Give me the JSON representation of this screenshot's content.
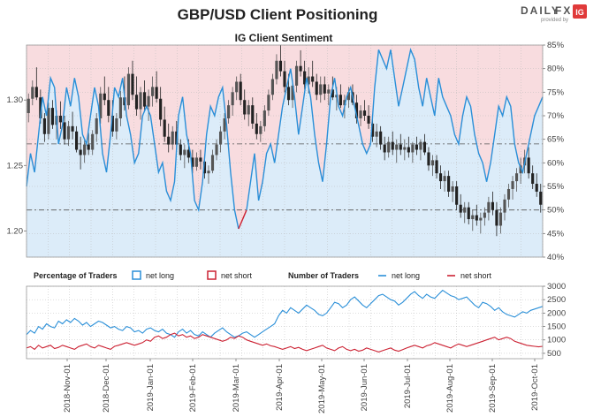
{
  "header": {
    "title": "GBP/USD Client Positioning",
    "brand_daily": "DAILY",
    "brand_fx": "FX",
    "brand_provided": "provided by",
    "brand_ig": "IG"
  },
  "colors": {
    "long": "#2a8fd8",
    "short": "#cc2233",
    "long_fill": "#dcecf9",
    "short_fill": "#f8dcdf",
    "candle_up": "#555555",
    "candle_down": "#222222",
    "brand_fx": "#f07a1e",
    "brand_ig": "#e03a3a"
  },
  "chart_data": [
    {
      "type": "line",
      "title": "IG Client Sentiment",
      "left_ticks": [
        "1.20",
        "1.25",
        "1.30"
      ],
      "left_range": [
        1.18,
        1.342
      ],
      "right_ticks": [
        "40%",
        "45%",
        "50%",
        "55%",
        "60%",
        "65%",
        "70%",
        "75%",
        "80%",
        "85%"
      ],
      "right_range": [
        40,
        85
      ],
      "reference_lines": {
        "percent": 50,
        "price": 1.2665
      },
      "price_candles": [
        [
          1.29,
          1.305,
          1.283,
          1.301
        ],
        [
          1.301,
          1.315,
          1.296,
          1.31
        ],
        [
          1.31,
          1.325,
          1.3,
          1.302
        ],
        [
          1.302,
          1.308,
          1.282,
          1.286
        ],
        [
          1.286,
          1.29,
          1.268,
          1.274
        ],
        [
          1.274,
          1.298,
          1.27,
          1.294
        ],
        [
          1.294,
          1.3,
          1.278,
          1.281
        ],
        [
          1.281,
          1.292,
          1.27,
          1.288
        ],
        [
          1.288,
          1.299,
          1.278,
          1.283
        ],
        [
          1.283,
          1.288,
          1.266,
          1.27
        ],
        [
          1.27,
          1.284,
          1.265,
          1.28
        ],
        [
          1.28,
          1.291,
          1.27,
          1.276
        ],
        [
          1.276,
          1.28,
          1.26,
          1.262
        ],
        [
          1.262,
          1.272,
          1.247,
          1.258
        ],
        [
          1.258,
          1.27,
          1.252,
          1.266
        ],
        [
          1.266,
          1.275,
          1.258,
          1.262
        ],
        [
          1.262,
          1.277,
          1.258,
          1.274
        ],
        [
          1.274,
          1.29,
          1.268,
          1.286
        ],
        [
          1.286,
          1.31,
          1.282,
          1.305
        ],
        [
          1.305,
          1.318,
          1.296,
          1.3
        ],
        [
          1.3,
          1.31,
          1.283,
          1.288
        ],
        [
          1.288,
          1.3,
          1.272,
          1.276
        ],
        [
          1.276,
          1.29,
          1.27,
          1.286
        ],
        [
          1.286,
          1.307,
          1.28,
          1.302
        ],
        [
          1.302,
          1.318,
          1.292,
          1.296
        ],
        [
          1.296,
          1.325,
          1.293,
          1.32
        ],
        [
          1.32,
          1.33,
          1.3,
          1.304
        ],
        [
          1.304,
          1.318,
          1.288,
          1.293
        ],
        [
          1.293,
          1.31,
          1.285,
          1.306
        ],
        [
          1.306,
          1.315,
          1.291,
          1.295
        ],
        [
          1.295,
          1.308,
          1.284,
          1.303
        ],
        [
          1.303,
          1.318,
          1.295,
          1.31
        ],
        [
          1.31,
          1.322,
          1.298,
          1.301
        ],
        [
          1.301,
          1.31,
          1.28,
          1.285
        ],
        [
          1.285,
          1.295,
          1.268,
          1.272
        ],
        [
          1.272,
          1.282,
          1.26,
          1.266
        ],
        [
          1.266,
          1.28,
          1.262,
          1.276
        ],
        [
          1.276,
          1.284,
          1.262,
          1.266
        ],
        [
          1.266,
          1.27,
          1.254,
          1.258
        ],
        [
          1.258,
          1.266,
          1.248,
          1.262
        ],
        [
          1.262,
          1.27,
          1.252,
          1.256
        ],
        [
          1.256,
          1.262,
          1.244,
          1.249
        ],
        [
          1.249,
          1.26,
          1.246,
          1.256
        ],
        [
          1.256,
          1.262,
          1.247,
          1.253
        ],
        [
          1.253,
          1.258,
          1.24,
          1.244
        ],
        [
          1.244,
          1.25,
          1.236,
          1.246
        ],
        [
          1.246,
          1.262,
          1.244,
          1.258
        ],
        [
          1.258,
          1.27,
          1.254,
          1.266
        ],
        [
          1.266,
          1.28,
          1.26,
          1.276
        ],
        [
          1.276,
          1.29,
          1.27,
          1.286
        ],
        [
          1.286,
          1.3,
          1.282,
          1.296
        ],
        [
          1.296,
          1.31,
          1.288,
          1.306
        ],
        [
          1.306,
          1.318,
          1.3,
          1.314
        ],
        [
          1.314,
          1.32,
          1.296,
          1.3
        ],
        [
          1.3,
          1.308,
          1.285,
          1.289
        ],
        [
          1.289,
          1.3,
          1.28,
          1.296
        ],
        [
          1.296,
          1.302,
          1.278,
          1.282
        ],
        [
          1.282,
          1.29,
          1.27,
          1.274
        ],
        [
          1.274,
          1.284,
          1.268,
          1.28
        ],
        [
          1.28,
          1.296,
          1.276,
          1.292
        ],
        [
          1.292,
          1.308,
          1.288,
          1.304
        ],
        [
          1.304,
          1.32,
          1.3,
          1.316
        ],
        [
          1.316,
          1.335,
          1.312,
          1.33
        ],
        [
          1.33,
          1.342,
          1.318,
          1.322
        ],
        [
          1.322,
          1.33,
          1.306,
          1.31
        ],
        [
          1.31,
          1.32,
          1.296,
          1.3
        ],
        [
          1.3,
          1.315,
          1.294,
          1.311
        ],
        [
          1.311,
          1.33,
          1.306,
          1.326
        ],
        [
          1.326,
          1.338,
          1.318,
          1.322
        ],
        [
          1.322,
          1.33,
          1.308,
          1.312
        ],
        [
          1.312,
          1.325,
          1.305,
          1.318
        ],
        [
          1.318,
          1.33,
          1.31,
          1.314
        ],
        [
          1.314,
          1.32,
          1.3,
          1.304
        ],
        [
          1.304,
          1.318,
          1.298,
          1.312
        ],
        [
          1.312,
          1.318,
          1.3,
          1.305
        ],
        [
          1.305,
          1.312,
          1.296,
          1.308
        ],
        [
          1.308,
          1.318,
          1.3,
          1.302
        ],
        [
          1.302,
          1.31,
          1.292,
          1.304
        ],
        [
          1.304,
          1.312,
          1.294,
          1.296
        ],
        [
          1.296,
          1.304,
          1.286,
          1.3
        ],
        [
          1.3,
          1.31,
          1.294,
          1.306
        ],
        [
          1.306,
          1.312,
          1.296,
          1.298
        ],
        [
          1.298,
          1.304,
          1.282,
          1.286
        ],
        [
          1.286,
          1.296,
          1.28,
          1.292
        ],
        [
          1.292,
          1.3,
          1.284,
          1.288
        ],
        [
          1.288,
          1.296,
          1.278,
          1.282
        ],
        [
          1.282,
          1.288,
          1.268,
          1.272
        ],
        [
          1.272,
          1.282,
          1.264,
          1.276
        ],
        [
          1.276,
          1.28,
          1.262,
          1.266
        ],
        [
          1.266,
          1.272,
          1.254,
          1.26
        ],
        [
          1.26,
          1.272,
          1.256,
          1.268
        ],
        [
          1.268,
          1.276,
          1.258,
          1.262
        ],
        [
          1.262,
          1.27,
          1.252,
          1.266
        ],
        [
          1.266,
          1.274,
          1.258,
          1.262
        ],
        [
          1.262,
          1.27,
          1.254,
          1.264
        ],
        [
          1.264,
          1.272,
          1.256,
          1.26
        ],
        [
          1.26,
          1.268,
          1.252,
          1.266
        ],
        [
          1.266,
          1.272,
          1.258,
          1.262
        ],
        [
          1.262,
          1.27,
          1.254,
          1.268
        ],
        [
          1.268,
          1.274,
          1.258,
          1.26
        ],
        [
          1.26,
          1.264,
          1.246,
          1.25
        ],
        [
          1.25,
          1.258,
          1.242,
          1.254
        ],
        [
          1.254,
          1.258,
          1.24,
          1.244
        ],
        [
          1.244,
          1.25,
          1.232,
          1.238
        ],
        [
          1.238,
          1.246,
          1.23,
          1.242
        ],
        [
          1.242,
          1.246,
          1.226,
          1.23
        ],
        [
          1.23,
          1.238,
          1.222,
          1.234
        ],
        [
          1.234,
          1.238,
          1.216,
          1.22
        ],
        [
          1.22,
          1.228,
          1.21,
          1.214
        ],
        [
          1.214,
          1.222,
          1.206,
          1.218
        ],
        [
          1.218,
          1.222,
          1.205,
          1.209
        ],
        [
          1.209,
          1.216,
          1.2,
          1.212
        ],
        [
          1.212,
          1.22,
          1.204,
          1.208
        ],
        [
          1.208,
          1.214,
          1.198,
          1.21
        ],
        [
          1.21,
          1.218,
          1.204,
          1.214
        ],
        [
          1.214,
          1.226,
          1.208,
          1.222
        ],
        [
          1.222,
          1.23,
          1.212,
          1.216
        ],
        [
          1.216,
          1.222,
          1.196,
          1.204
        ],
        [
          1.204,
          1.218,
          1.198,
          1.214
        ],
        [
          1.214,
          1.228,
          1.208,
          1.224
        ],
        [
          1.224,
          1.236,
          1.218,
          1.232
        ],
        [
          1.232,
          1.242,
          1.224,
          1.238
        ],
        [
          1.238,
          1.248,
          1.23,
          1.244
        ],
        [
          1.244,
          1.256,
          1.236,
          1.25
        ],
        [
          1.25,
          1.262,
          1.244,
          1.256
        ],
        [
          1.256,
          1.264,
          1.24,
          1.244
        ],
        [
          1.244,
          1.25,
          1.232,
          1.236
        ],
        [
          1.236,
          1.244,
          1.226,
          1.23
        ],
        [
          1.23,
          1.236,
          1.214,
          1.22
        ]
      ],
      "series": [
        {
          "name": "net long",
          "axis": "percent",
          "values": [
            55,
            62,
            58,
            66,
            74,
            70,
            78,
            76,
            64,
            68,
            76,
            72,
            78,
            74,
            66,
            64,
            70,
            76,
            72,
            62,
            58,
            66,
            76,
            74,
            78,
            70,
            66,
            60,
            62,
            70,
            72,
            70,
            64,
            58,
            60,
            54,
            52,
            56,
            70,
            74,
            66,
            62,
            52,
            50,
            56,
            66,
            72,
            70,
            74,
            76,
            68,
            58,
            50,
            46,
            48,
            50,
            56,
            62,
            52,
            56,
            62,
            64,
            60,
            66,
            72,
            76,
            80,
            74,
            66,
            72,
            78,
            74,
            66,
            60,
            56,
            64,
            74,
            78,
            72,
            70,
            74,
            76,
            72,
            68,
            64,
            62,
            64,
            76,
            84,
            82,
            80,
            84,
            78,
            72,
            76,
            80,
            84,
            82,
            76,
            72,
            78,
            74,
            70,
            78,
            74,
            72,
            70,
            66,
            64,
            70,
            74,
            72,
            66,
            62,
            60,
            56,
            60,
            66,
            72,
            70,
            74,
            72,
            64,
            60,
            58,
            62,
            66,
            70,
            72,
            74
          ]
        }
      ]
    },
    {
      "type": "line",
      "title": "",
      "y_ticks": [
        "500",
        "1000",
        "1500",
        "2000",
        "2500",
        "3000"
      ],
      "y_range": [
        300,
        3000
      ],
      "x_ticks": [
        "2018-Nov-01",
        "2018-Dec-01",
        "2019-Jan-01",
        "2019-Feb-01",
        "2019-Mar-01",
        "2019-Apr-01",
        "2019-May-01",
        "2019-Jun-01",
        "2019-Jul-01",
        "2019-Aug-01",
        "2019-Sep-01",
        "2019-Oct-01"
      ],
      "legend": {
        "pct_label": "Percentage of Traders",
        "pct_long": "net long",
        "pct_short": "net short",
        "num_label": "Number of Traders",
        "num_long": "net long",
        "num_short": "net short"
      },
      "series": [
        {
          "name": "net long",
          "values": [
            1200,
            1350,
            1250,
            1500,
            1400,
            1600,
            1500,
            1450,
            1700,
            1600,
            1750,
            1650,
            1800,
            1700,
            1550,
            1650,
            1500,
            1600,
            1700,
            1650,
            1550,
            1450,
            1500,
            1400,
            1350,
            1500,
            1450,
            1300,
            1350,
            1250,
            1400,
            1450,
            1350,
            1300,
            1400,
            1250,
            1200,
            1100,
            1300,
            1400,
            1250,
            1350,
            1200,
            1150,
            1300,
            1200,
            1100,
            1250,
            1350,
            1450,
            1300,
            1200,
            1100,
            1150,
            1250,
            1300,
            1200,
            1100,
            1200,
            1300,
            1400,
            1500,
            1600,
            1900,
            2100,
            2000,
            2200,
            2100,
            2000,
            2150,
            2300,
            2200,
            2100,
            1950,
            1900,
            2000,
            2200,
            2400,
            2350,
            2200,
            2300,
            2500,
            2600,
            2450,
            2300,
            2200,
            2350,
            2500,
            2650,
            2700,
            2600,
            2500,
            2450,
            2300,
            2400,
            2550,
            2700,
            2800,
            2650,
            2550,
            2700,
            2600,
            2550,
            2700,
            2850,
            2750,
            2650,
            2600,
            2500,
            2550,
            2600,
            2450,
            2300,
            2200,
            2400,
            2350,
            2250,
            2100,
            2200,
            2050,
            1950,
            1900,
            1850,
            1950,
            2050,
            2000,
            2100,
            2150,
            2200,
            2250
          ]
        },
        {
          "name": "net short",
          "values": [
            700,
            750,
            650,
            800,
            700,
            750,
            800,
            680,
            720,
            800,
            750,
            700,
            650,
            750,
            800,
            850,
            750,
            700,
            800,
            750,
            700,
            650,
            760,
            800,
            850,
            900,
            850,
            800,
            850,
            900,
            1000,
            950,
            1100,
            1150,
            1050,
            1100,
            1200,
            1250,
            1150,
            1200,
            1100,
            1150,
            1050,
            1100,
            1200,
            1150,
            1100,
            1050,
            1000,
            950,
            1000,
            1100,
            1050,
            1150,
            1100,
            1000,
            950,
            900,
            850,
            800,
            850,
            780,
            750,
            700,
            650,
            700,
            750,
            680,
            720,
            650,
            600,
            650,
            700,
            750,
            800,
            700,
            650,
            600,
            700,
            750,
            650,
            600,
            650,
            580,
            620,
            700,
            650,
            600,
            550,
            600,
            650,
            700,
            620,
            580,
            640,
            700,
            750,
            800,
            750,
            700,
            780,
            820,
            900,
            850,
            800,
            750,
            700,
            780,
            850,
            800,
            750,
            800,
            850,
            900,
            950,
            1000,
            1050,
            1100,
            1000,
            1050,
            1100,
            1050,
            950,
            900,
            850,
            800,
            780,
            760,
            740,
            760
          ]
        }
      ]
    }
  ]
}
